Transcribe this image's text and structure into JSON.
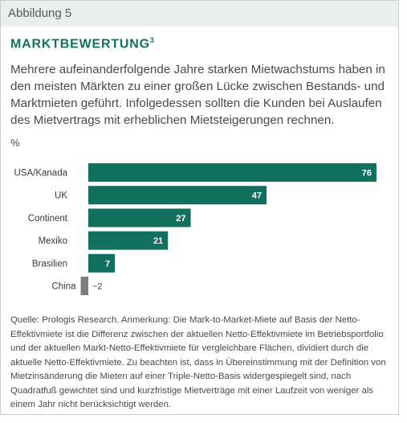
{
  "figure_label": "Abbildung 5",
  "title": "MARKTBEWERTUNG",
  "title_footnote": "3",
  "subtitle": "Mehrere aufeinanderfolgende Jahre starken Mietwachstums haben in den meisten Märkten zu einer großen Lücke zwischen Bestands- und Marktmieten geführt. Infolgedessen sollten die Kunden bei Auslaufen des Mietvertrags mit erheblichen Mietsteigerungen rechnen.",
  "unit": "%",
  "source": "Quelle: Prologis Research. Anmerkung: Die Mark-to-Market-Miete auf Basis der Netto-Effektivmiete ist die Differenz zwischen der aktuellen Netto-Effektivmiete im Betriebsportfolio und der aktuellen Markt-Netto-Effektivmiete für vergleichbare Flächen, dividiert durch die aktuelle Netto-Effektivmiete. Zu beachten ist, dass in Übereinstimmung mit der Definition von Mietzinsänderung die Mieten auf einer Triple-Netto-Basis widergespiegelt sind, nach Quadratfuß gewichtet sind und kurzfristige Mietverträge mit einer Laufzeit von weniger als einem Jahr nicht berücksichtigt werden.",
  "colors": {
    "positive": "#12705f",
    "negative": "#7d7d7d",
    "title": "#12705f",
    "header_bg": "#eceeed"
  },
  "chart_data": {
    "type": "bar",
    "orientation": "horizontal",
    "categories": [
      "USA/Kanada",
      "UK",
      "Continent",
      "Mexiko",
      "Brasilien",
      "China"
    ],
    "values": [
      76,
      47,
      27,
      21,
      7,
      -2
    ],
    "value_labels": [
      "76",
      "47",
      "27",
      "21",
      "7",
      "−2"
    ],
    "unit": "%",
    "xlim": [
      -2,
      76
    ],
    "grid": false,
    "legend": false
  }
}
